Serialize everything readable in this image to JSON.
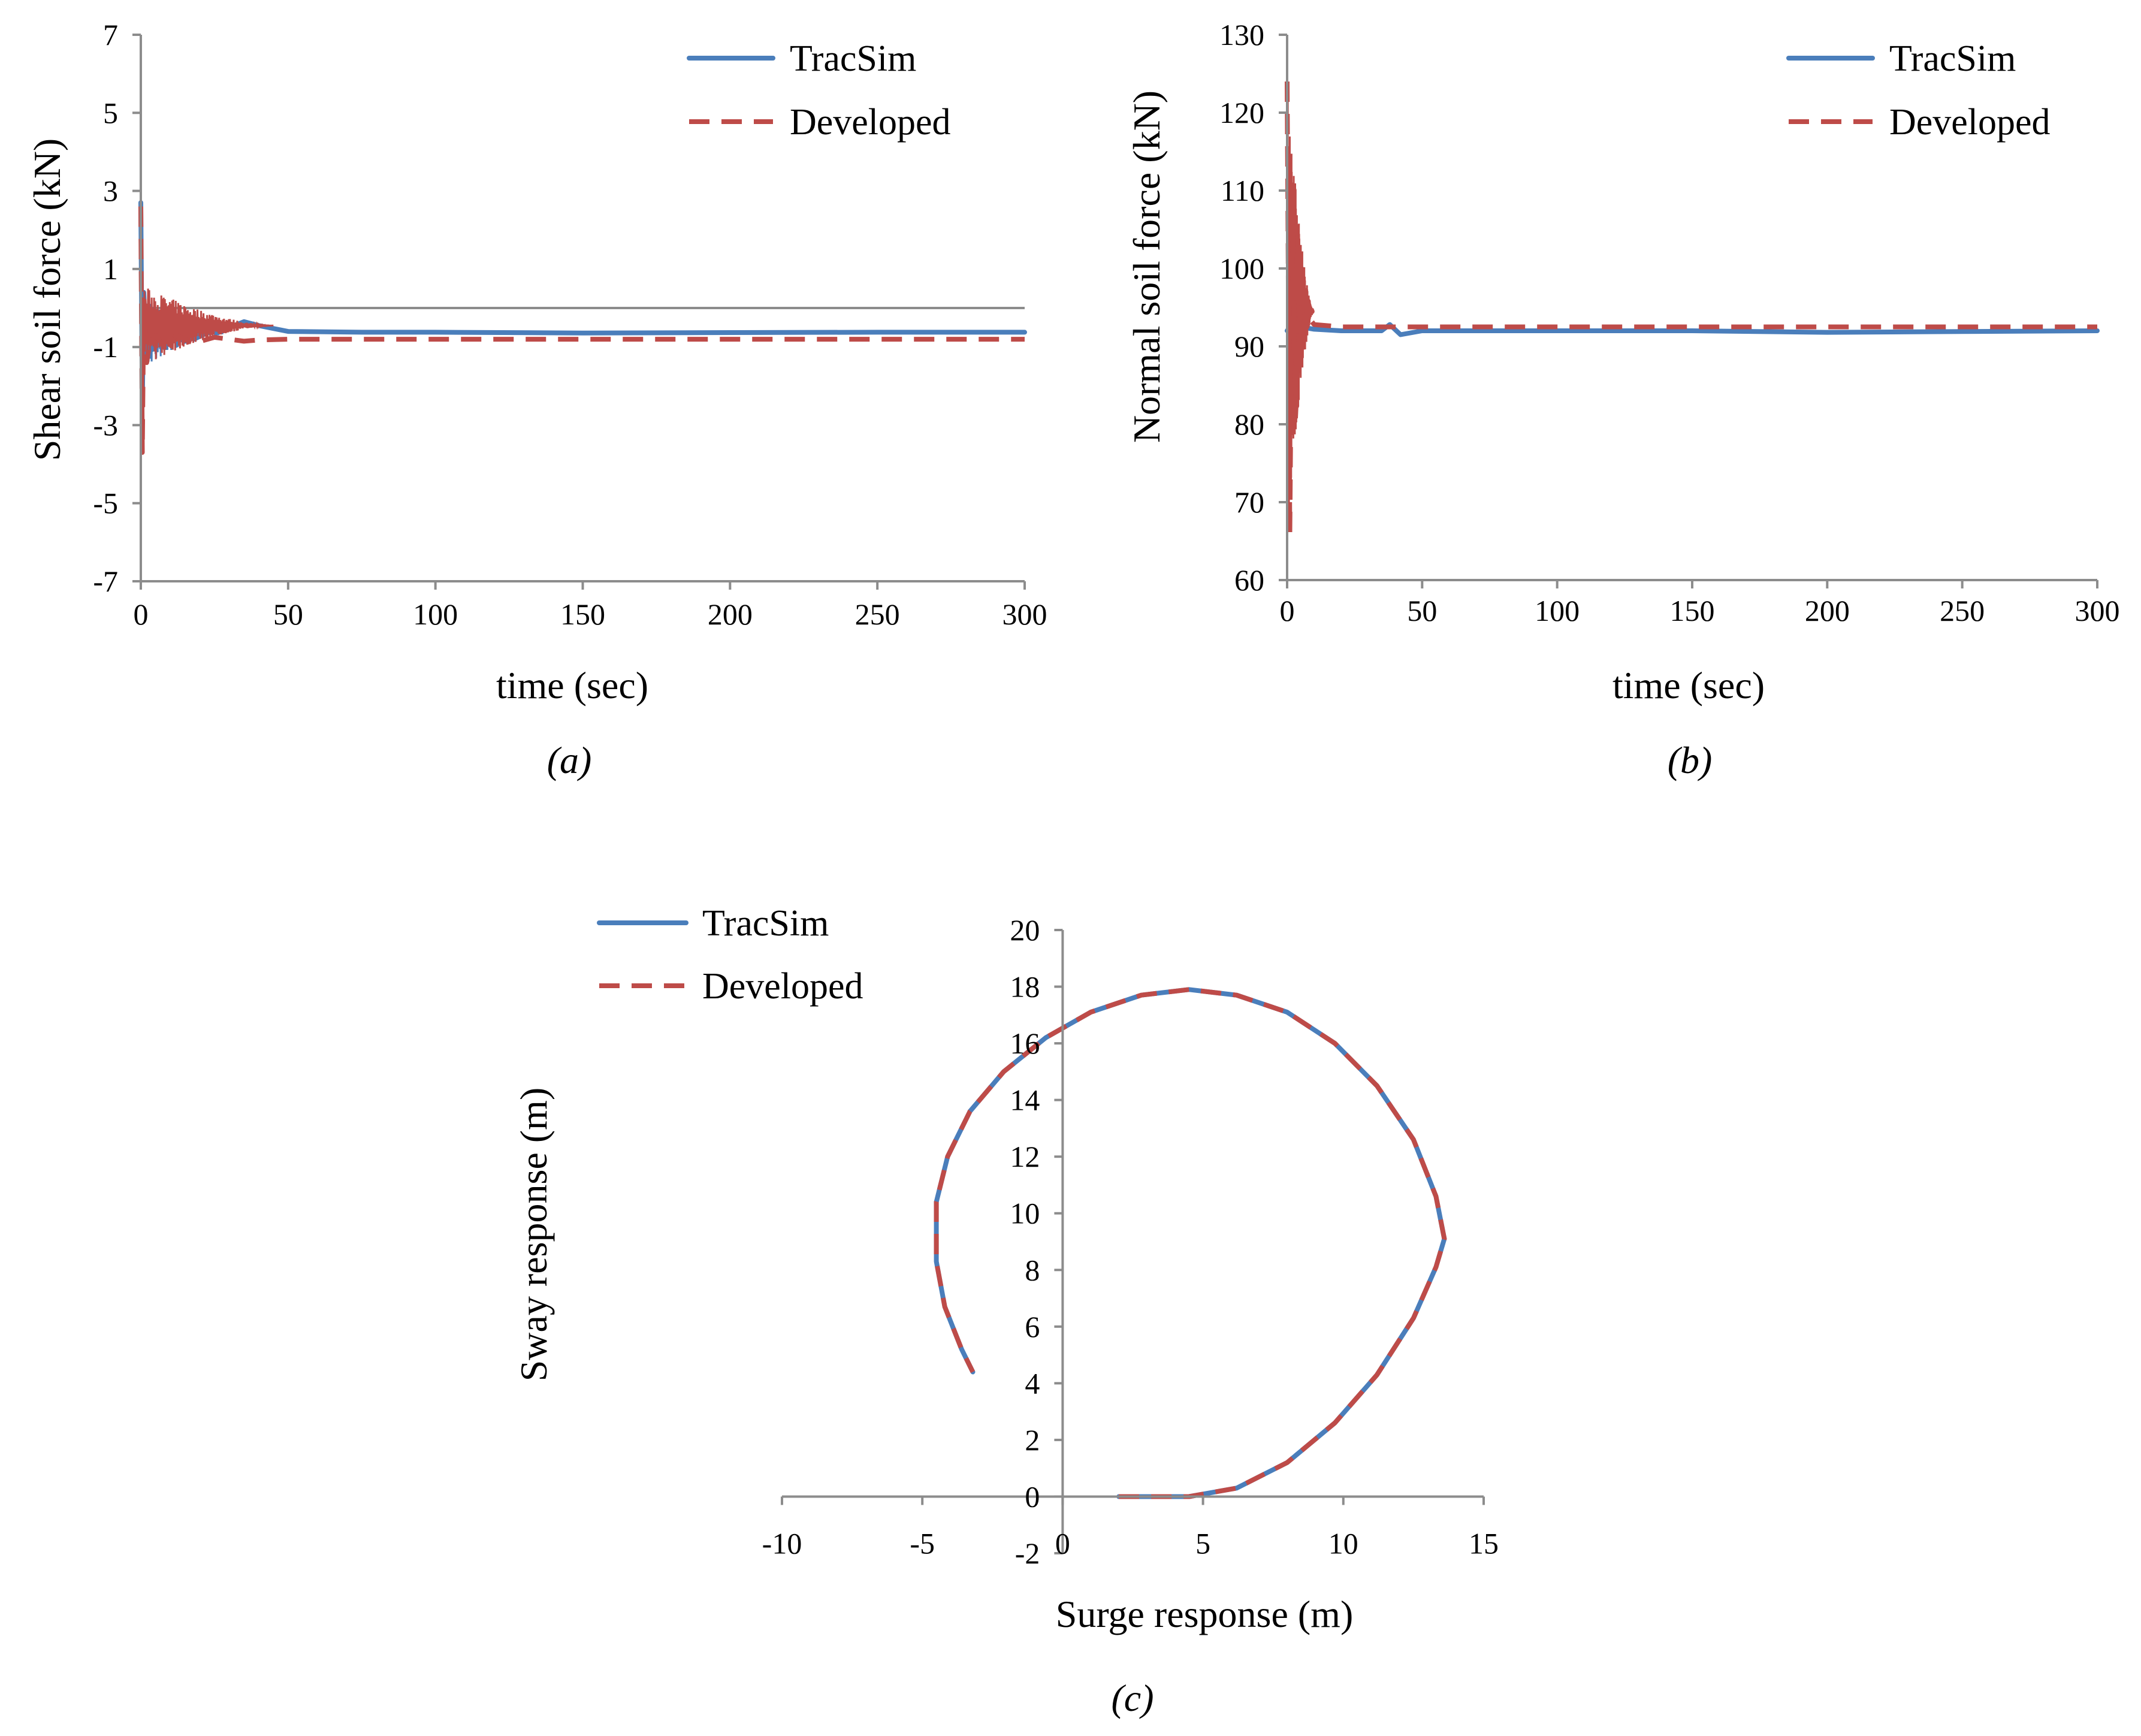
{
  "chart_data": [
    {
      "type": "line",
      "panel_label": "(a)",
      "title": "",
      "xlabel": "time (sec)",
      "ylabel": "Shear soil force (kN)",
      "xlim": [
        0,
        300
      ],
      "ylim": [
        -7,
        7
      ],
      "xticks": [
        0,
        50,
        100,
        150,
        200,
        250,
        300
      ],
      "yticks": [
        -7,
        -5,
        -3,
        -1,
        1,
        3,
        5,
        7
      ],
      "reference_line_y": 0,
      "legend_position": "top-right",
      "series": [
        {
          "name": "TracSim",
          "style": "solid",
          "x": [
            0,
            0.5,
            1,
            2,
            3,
            5,
            8,
            12,
            18,
            25,
            30,
            35,
            40,
            50,
            75,
            100,
            150,
            200,
            250,
            300
          ],
          "y": [
            2.7,
            -2.5,
            0.4,
            -1.2,
            -0.9,
            -0.6,
            -0.9,
            -0.6,
            -0.8,
            -0.55,
            -0.5,
            -0.35,
            -0.45,
            -0.6,
            -0.62,
            -0.62,
            -0.64,
            -0.63,
            -0.62,
            -0.62
          ],
          "transient_band": {
            "t_end": 28,
            "y_min": -1.6,
            "y_max": 0.3
          }
        },
        {
          "name": "Developed",
          "style": "dashed",
          "x": [
            0,
            0.5,
            1,
            2,
            3,
            5,
            8,
            12,
            18,
            25,
            30,
            35,
            40,
            50,
            75,
            100,
            150,
            200,
            250,
            300
          ],
          "y": [
            2.6,
            -3.7,
            0.2,
            -1.4,
            -0.9,
            -0.7,
            -1.0,
            -0.7,
            -0.9,
            -0.75,
            -0.8,
            -0.85,
            -0.82,
            -0.8,
            -0.8,
            -0.8,
            -0.8,
            -0.8,
            -0.8,
            -0.8
          ],
          "transient_band": {
            "t_end": 45,
            "y_min": -1.5,
            "y_max": 0.6
          }
        }
      ]
    },
    {
      "type": "line",
      "panel_label": "(b)",
      "title": "",
      "xlabel": "time (sec)",
      "ylabel": "Normal soil force (kN)",
      "xlim": [
        0,
        300
      ],
      "ylim": [
        60,
        130
      ],
      "xticks": [
        0,
        50,
        100,
        150,
        200,
        250,
        300
      ],
      "yticks": [
        60,
        70,
        80,
        90,
        100,
        110,
        120,
        130
      ],
      "legend_position": "top-right",
      "series": [
        {
          "name": "TracSim",
          "style": "solid",
          "x": [
            0,
            2,
            5,
            10,
            20,
            35,
            38,
            42,
            50,
            100,
            150,
            200,
            250,
            300
          ],
          "y": [
            92,
            93,
            92.5,
            92.2,
            92.0,
            92.0,
            92.8,
            91.5,
            92.0,
            92.0,
            92.0,
            91.8,
            91.9,
            92.0
          ],
          "transient_band": {
            "t_end": 8,
            "y_min": 89,
            "y_max": 96
          }
        },
        {
          "name": "Developed",
          "style": "dashed",
          "x": [
            0,
            1,
            2,
            3,
            5,
            10,
            20,
            50,
            100,
            150,
            200,
            250,
            300
          ],
          "y": [
            124,
            66,
            108,
            80,
            95,
            92.8,
            92.5,
            92.5,
            92.5,
            92.5,
            92.5,
            92.5,
            92.5
          ],
          "transient_band": {
            "t_end": 10,
            "y_min": 65,
            "y_max": 124
          }
        }
      ]
    },
    {
      "type": "line",
      "panel_label": "(c)",
      "title": "",
      "xlabel": "Surge response (m)",
      "ylabel": "Sway response (m)",
      "xlim": [
        -10,
        15
      ],
      "ylim": [
        -2,
        20
      ],
      "xticks": [
        -10,
        -5,
        0,
        5,
        10,
        15
      ],
      "yticks": [
        -2,
        0,
        2,
        4,
        6,
        8,
        10,
        12,
        14,
        16,
        18,
        20
      ],
      "legend_position": "top-left",
      "series": [
        {
          "name": "TracSim",
          "style": "solid",
          "x": [
            2.0,
            3.0,
            4.5,
            6.2,
            8.0,
            9.7,
            11.2,
            12.5,
            13.3,
            13.6,
            13.3,
            12.5,
            11.2,
            9.7,
            8.0,
            6.2,
            4.5,
            2.8,
            1.0,
            -0.6,
            -2.1,
            -3.3,
            -4.1,
            -4.5,
            -4.5,
            -4.2,
            -3.6,
            -3.2
          ],
          "y": [
            0.0,
            0.0,
            0.0,
            0.3,
            1.2,
            2.6,
            4.3,
            6.3,
            8.1,
            9.1,
            10.6,
            12.6,
            14.5,
            16.0,
            17.1,
            17.7,
            17.9,
            17.7,
            17.1,
            16.2,
            15.0,
            13.6,
            12.0,
            10.4,
            8.3,
            6.7,
            5.2,
            4.4
          ]
        },
        {
          "name": "Developed",
          "style": "dashed",
          "x": [
            2.0,
            3.0,
            4.5,
            6.2,
            8.0,
            9.7,
            11.2,
            12.5,
            13.3,
            13.6,
            13.3,
            12.5,
            11.2,
            9.7,
            8.0,
            6.2,
            4.5,
            2.8,
            1.0,
            -0.6,
            -2.1,
            -3.3,
            -4.1,
            -4.5,
            -4.5,
            -4.2,
            -3.6,
            -3.2
          ],
          "y": [
            0.0,
            0.0,
            0.0,
            0.3,
            1.2,
            2.6,
            4.3,
            6.3,
            8.1,
            9.1,
            10.6,
            12.6,
            14.5,
            16.0,
            17.1,
            17.7,
            17.9,
            17.7,
            17.1,
            16.2,
            15.0,
            13.6,
            12.0,
            10.4,
            8.3,
            6.7,
            5.2,
            4.4
          ]
        }
      ]
    }
  ]
}
